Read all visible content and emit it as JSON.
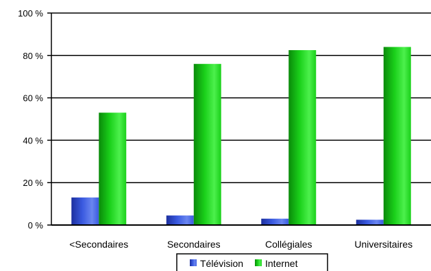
{
  "chart_data": {
    "type": "bar",
    "categories": [
      "<Secondaires",
      "Secondaires",
      "Collégiales",
      "Universitaires"
    ],
    "series": [
      {
        "name": "Télévision",
        "values": [
          13,
          4.5,
          3,
          2.5
        ],
        "color": "#3050d8"
      },
      {
        "name": "Internet",
        "values": [
          53,
          76,
          82.5,
          84
        ],
        "color": "#16c216"
      }
    ],
    "y_ticks": [
      "0 %",
      "20 %",
      "40 %",
      "60 %",
      "80 %",
      "100 %"
    ],
    "ylim": [
      0,
      100
    ],
    "grid": true,
    "legend_position": "bottom"
  }
}
